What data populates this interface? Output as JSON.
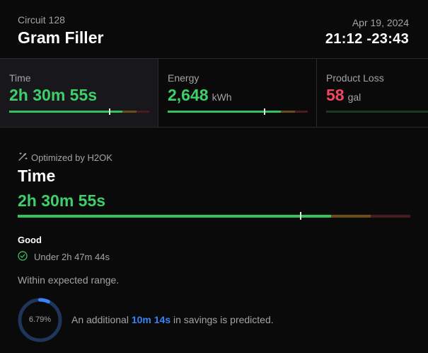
{
  "header": {
    "circuit": "Circuit 128",
    "machine": "Gram Filler",
    "date": "Apr 19, 2024",
    "time_range": "21:12 -23:43"
  },
  "metrics": [
    {
      "label": "Time",
      "value": "2h 30m 55s",
      "unit": "",
      "status": "good",
      "marker_fraction": 0.72
    },
    {
      "label": "Energy",
      "value": "2,648",
      "unit": "kWh",
      "status": "good",
      "marker_fraction": 0.69
    },
    {
      "label": "Product Loss",
      "value": "58",
      "unit": "gal",
      "status": "bad"
    }
  ],
  "detail": {
    "optimized_by": "Optimized by H2OK",
    "title": "Time",
    "value": "2h 30m 55s",
    "marker_fraction": 0.72,
    "rating": "Good",
    "threshold": "Under 2h 47m 44s",
    "range_note": "Within expected range.",
    "savings_percent": "6.79%",
    "savings_percent_value": 6.79,
    "savings_prefix": "An additional",
    "savings_amount": "10m 14s",
    "savings_suffix": "in savings is predicted."
  },
  "colors": {
    "good": "#3ecf6b",
    "bad": "#f2465e",
    "accent": "#3b82f6",
    "muted": "#a3a3a8",
    "background": "#0a0a0b"
  },
  "icons": {
    "optimized": "magic-wand-icon",
    "threshold": "check-circle-icon"
  }
}
